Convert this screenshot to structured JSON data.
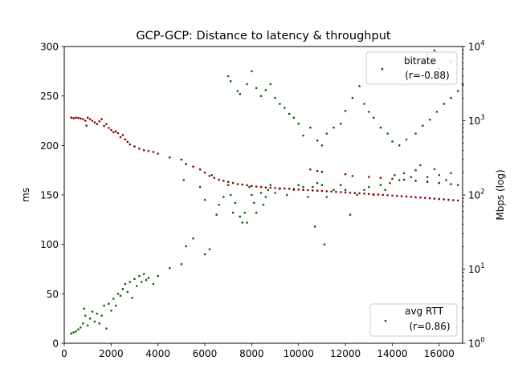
{
  "chart_data": {
    "type": "scatter",
    "title": "GCP-GCP: Distance to latency & throughput",
    "xlabel": "",
    "ylabel_left": "ms",
    "ylabel_right": "Mbps (log)",
    "xlim": [
      0,
      17000
    ],
    "ylim_left": [
      0,
      300
    ],
    "ylim_right": [
      1,
      10000
    ],
    "right_scale": "log",
    "grid": false,
    "x_ticks": [
      "0",
      "2000",
      "4000",
      "6000",
      "8000",
      "10000",
      "12000",
      "14000",
      "16000"
    ],
    "y_left_ticks": [
      "0",
      "50",
      "100",
      "150",
      "200",
      "250",
      "300"
    ],
    "legends": [
      {
        "placement": "top-right",
        "label": "bitrate",
        "stat": "(r=-0.88)",
        "color": "#8b0000"
      },
      {
        "placement": "bottom-right",
        "label": "avg RTT",
        "stat": "(r=0.86)",
        "color": "#006400"
      }
    ],
    "series": [
      {
        "name": "avg RTT",
        "axis": "left",
        "color": "#006400",
        "points": [
          [
            300,
            10
          ],
          [
            400,
            11
          ],
          [
            500,
            12
          ],
          [
            600,
            14
          ],
          [
            700,
            16
          ],
          [
            800,
            20
          ],
          [
            850,
            35
          ],
          [
            900,
            28
          ],
          [
            1000,
            18
          ],
          [
            1100,
            25
          ],
          [
            1200,
            32
          ],
          [
            1300,
            22
          ],
          [
            1400,
            30
          ],
          [
            1500,
            20
          ],
          [
            1600,
            28
          ],
          [
            1700,
            38
          ],
          [
            1800,
            15
          ],
          [
            1900,
            40
          ],
          [
            2000,
            33
          ],
          [
            2100,
            45
          ],
          [
            2200,
            38
          ],
          [
            2300,
            50
          ],
          [
            2400,
            48
          ],
          [
            2500,
            55
          ],
          [
            2600,
            60
          ],
          [
            2700,
            52
          ],
          [
            2800,
            62
          ],
          [
            2900,
            46
          ],
          [
            3000,
            65
          ],
          [
            3100,
            58
          ],
          [
            3200,
            68
          ],
          [
            3300,
            62
          ],
          [
            3400,
            70
          ],
          [
            3500,
            64
          ],
          [
            3600,
            66
          ],
          [
            3800,
            60
          ],
          [
            4000,
            68
          ],
          [
            4500,
            76
          ],
          [
            5000,
            80
          ],
          [
            5200,
            98
          ],
          [
            5500,
            106
          ],
          [
            6000,
            90
          ],
          [
            6200,
            95
          ],
          [
            5100,
            165
          ],
          [
            5800,
            158
          ],
          [
            6000,
            145
          ],
          [
            6300,
            170
          ],
          [
            6500,
            130
          ],
          [
            6600,
            140
          ],
          [
            6800,
            148
          ],
          [
            7000,
            160
          ],
          [
            7100,
            150
          ],
          [
            7200,
            132
          ],
          [
            7300,
            142
          ],
          [
            7500,
            128
          ],
          [
            7600,
            122
          ],
          [
            7700,
            132
          ],
          [
            7800,
            122
          ],
          [
            7900,
            158
          ],
          [
            8000,
            150
          ],
          [
            8100,
            142
          ],
          [
            8200,
            132
          ],
          [
            8400,
            152
          ],
          [
            8500,
            140
          ],
          [
            8600,
            148
          ],
          [
            8700,
            155
          ],
          [
            8800,
            160
          ],
          [
            9000,
            152
          ],
          [
            9200,
            156
          ],
          [
            9500,
            150
          ],
          [
            9800,
            155
          ],
          [
            10000,
            160
          ],
          [
            10200,
            158
          ],
          [
            10400,
            148
          ],
          [
            10600,
            158
          ],
          [
            10700,
            118
          ],
          [
            10800,
            162
          ],
          [
            11000,
            160
          ],
          [
            11100,
            100
          ],
          [
            11200,
            148
          ],
          [
            11500,
            155
          ],
          [
            11800,
            160
          ],
          [
            12000,
            155
          ],
          [
            12200,
            130
          ],
          [
            12500,
            150
          ],
          [
            12800,
            155
          ],
          [
            13000,
            158
          ],
          [
            13200,
            150
          ],
          [
            13500,
            160
          ],
          [
            13700,
            155
          ],
          [
            13900,
            162
          ],
          [
            14100,
            170
          ],
          [
            14300,
            165
          ],
          [
            14500,
            172
          ],
          [
            14800,
            168
          ],
          [
            15000,
            175
          ],
          [
            15200,
            180
          ],
          [
            15500,
            168
          ],
          [
            15800,
            176
          ],
          [
            16000,
            170
          ],
          [
            16300,
            165
          ],
          [
            16500,
            172
          ],
          [
            16800,
            160
          ],
          [
            7000,
            270
          ],
          [
            7100,
            265
          ],
          [
            7400,
            255
          ],
          [
            7500,
            252
          ],
          [
            7800,
            262
          ],
          [
            8000,
            275
          ],
          [
            8200,
            258
          ],
          [
            8400,
            250
          ],
          [
            8600,
            256
          ],
          [
            8800,
            262
          ],
          [
            9000,
            248
          ],
          [
            9200,
            242
          ],
          [
            9400,
            238
          ],
          [
            9600,
            232
          ],
          [
            9800,
            228
          ],
          [
            10000,
            222
          ],
          [
            10200,
            210
          ],
          [
            10500,
            218
          ],
          [
            10800,
            205
          ],
          [
            11000,
            200
          ],
          [
            11200,
            212
          ],
          [
            11500,
            218
          ],
          [
            11800,
            222
          ],
          [
            12000,
            235
          ],
          [
            12300,
            248
          ],
          [
            12600,
            260
          ],
          [
            12800,
            242
          ],
          [
            13000,
            234
          ],
          [
            13200,
            228
          ],
          [
            13500,
            218
          ],
          [
            13800,
            212
          ],
          [
            14000,
            204
          ],
          [
            14300,
            200
          ],
          [
            14600,
            206
          ],
          [
            15000,
            212
          ],
          [
            15300,
            220
          ],
          [
            15600,
            226
          ],
          [
            15900,
            234
          ],
          [
            16200,
            242
          ],
          [
            16500,
            248
          ],
          [
            16800,
            255
          ],
          [
            17000,
            262
          ],
          [
            16000,
            278
          ],
          [
            16500,
            285
          ],
          [
            15500,
            292
          ],
          [
            15800,
            296
          ]
        ]
      },
      {
        "name": "bitrate",
        "axis": "right",
        "color": "#8b0000",
        "points": [
          [
            300,
            1100
          ],
          [
            400,
            1080
          ],
          [
            500,
            1100
          ],
          [
            600,
            1090
          ],
          [
            700,
            1070
          ],
          [
            800,
            1050
          ],
          [
            900,
            1000
          ],
          [
            950,
            860
          ],
          [
            1000,
            1100
          ],
          [
            1100,
            1050
          ],
          [
            1200,
            1000
          ],
          [
            1300,
            950
          ],
          [
            1400,
            900
          ],
          [
            1500,
            980
          ],
          [
            1600,
            1050
          ],
          [
            1700,
            850
          ],
          [
            1800,
            900
          ],
          [
            1900,
            800
          ],
          [
            2000,
            750
          ],
          [
            2100,
            700
          ],
          [
            2200,
            720
          ],
          [
            2300,
            680
          ],
          [
            2400,
            600
          ],
          [
            2500,
            640
          ],
          [
            2600,
            560
          ],
          [
            2700,
            520
          ],
          [
            2800,
            480
          ],
          [
            3000,
            450
          ],
          [
            3200,
            420
          ],
          [
            3400,
            400
          ],
          [
            3600,
            390
          ],
          [
            3800,
            380
          ],
          [
            4000,
            360
          ],
          [
            4500,
            320
          ],
          [
            5000,
            300
          ],
          [
            5200,
            260
          ],
          [
            5500,
            240
          ],
          [
            5800,
            220
          ],
          [
            6000,
            200
          ],
          [
            6200,
            180
          ],
          [
            6400,
            170
          ],
          [
            6600,
            160
          ],
          [
            6800,
            155
          ],
          [
            7000,
            150
          ],
          [
            7200,
            145
          ],
          [
            7400,
            140
          ],
          [
            7600,
            138
          ],
          [
            7800,
            135
          ],
          [
            8000,
            132
          ],
          [
            8200,
            130
          ],
          [
            8400,
            128
          ],
          [
            8600,
            126
          ],
          [
            8800,
            125
          ],
          [
            9000,
            124
          ],
          [
            9200,
            123
          ],
          [
            9400,
            122
          ],
          [
            9600,
            121
          ],
          [
            9800,
            120
          ],
          [
            10000,
            118
          ],
          [
            10200,
            117
          ],
          [
            10400,
            116
          ],
          [
            10600,
            115
          ],
          [
            10800,
            114
          ],
          [
            11000,
            113
          ],
          [
            11200,
            112
          ],
          [
            11400,
            111
          ],
          [
            11600,
            110
          ],
          [
            11800,
            109
          ],
          [
            12000,
            108
          ],
          [
            12200,
            107
          ],
          [
            12400,
            106
          ],
          [
            12600,
            105
          ],
          [
            12800,
            104
          ],
          [
            13000,
            103
          ],
          [
            13200,
            102
          ],
          [
            13400,
            101
          ],
          [
            13600,
            100
          ],
          [
            13800,
            99
          ],
          [
            14000,
            98
          ],
          [
            14200,
            97
          ],
          [
            14400,
            96
          ],
          [
            14600,
            95
          ],
          [
            14800,
            94
          ],
          [
            15000,
            93
          ],
          [
            15200,
            92
          ],
          [
            15400,
            91
          ],
          [
            15600,
            90
          ],
          [
            15800,
            89
          ],
          [
            16000,
            88
          ],
          [
            16200,
            87
          ],
          [
            16400,
            86
          ],
          [
            16600,
            85
          ],
          [
            16800,
            84
          ],
          [
            10500,
            220
          ],
          [
            10800,
            210
          ],
          [
            11000,
            205
          ],
          [
            12000,
            190
          ],
          [
            12300,
            180
          ],
          [
            13000,
            175
          ],
          [
            13500,
            170
          ],
          [
            14000,
            165
          ],
          [
            14500,
            160
          ],
          [
            15000,
            155
          ],
          [
            15500,
            150
          ],
          [
            16000,
            145
          ],
          [
            16500,
            140
          ]
        ]
      }
    ]
  }
}
